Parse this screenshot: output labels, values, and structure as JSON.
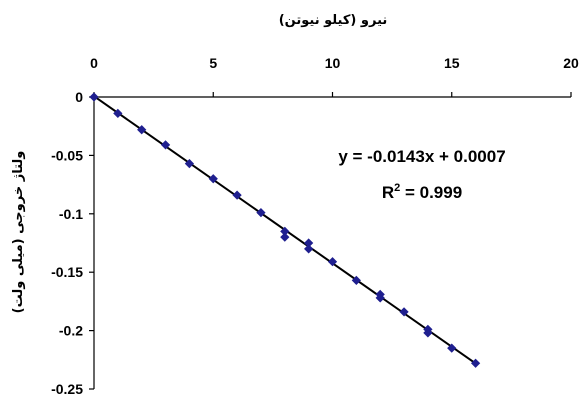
{
  "chart_data": {
    "type": "scatter",
    "title": "",
    "xlabel": "نیرو (کیلو نیوتن)",
    "ylabel": "ولتاژ خروجی (میلی ولت)",
    "xlim": [
      0,
      20
    ],
    "ylim": [
      -0.25,
      0
    ],
    "x_ticks": [
      0,
      5,
      10,
      15,
      20
    ],
    "y_ticks": [
      0,
      -0.05,
      -0.1,
      -0.15,
      -0.2,
      -0.25
    ],
    "x_tick_labels": [
      "0",
      "5",
      "10",
      "15",
      "20"
    ],
    "y_tick_labels": [
      "0",
      "-0.05",
      "-0.1",
      "-0.15",
      "-0.2",
      "-0.25"
    ],
    "x_axis_position": "top",
    "grid": false,
    "marker_color": "#1f1f8f",
    "line_color": "#000000",
    "series": [
      {
        "x": [
          0,
          1,
          2,
          3,
          4,
          5,
          6,
          7,
          8,
          8,
          9,
          9,
          10,
          11,
          12,
          12,
          13,
          14,
          14,
          15,
          16
        ],
        "y": [
          0,
          -0.014,
          -0.028,
          -0.041,
          -0.057,
          -0.07,
          -0.084,
          -0.099,
          -0.115,
          -0.12,
          -0.125,
          -0.13,
          -0.141,
          -0.157,
          -0.169,
          -0.172,
          -0.184,
          -0.199,
          -0.202,
          -0.215,
          -0.228
        ]
      }
    ],
    "trendline": {
      "slope": -0.0143,
      "intercept": 0.0007,
      "x_range": [
        0,
        16
      ]
    },
    "annotations": {
      "equation": "y = -0.0143x + 0.0007",
      "r2_base": "R",
      "r2_sup": "2",
      "r2_value": " = 0.999"
    }
  }
}
